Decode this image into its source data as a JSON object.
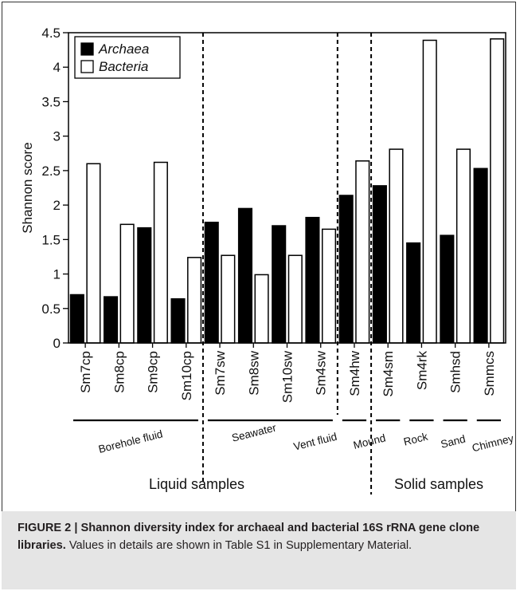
{
  "chart_data": {
    "type": "bar",
    "ylabel": "Shannon score",
    "ylim": [
      0,
      4.5
    ],
    "yticks": [
      "0",
      "0.5",
      "1",
      "1.5",
      "2",
      "2.5",
      "3",
      "3.5",
      "4",
      "4.5"
    ],
    "categories": [
      "Sm7cp",
      "Sm8cp",
      "Sm9cp",
      "Sm10cp",
      "Sm7sw",
      "Sm8sw",
      "Sm10sw",
      "Sm4sw",
      "Sm4hw",
      "Sm4sm",
      "Sm4rk",
      "Smhsd",
      "Smmcs"
    ],
    "series": [
      {
        "name": "Archaea",
        "color": "#000000",
        "values": [
          0.7,
          0.67,
          1.67,
          0.64,
          1.75,
          1.95,
          1.7,
          1.82,
          2.14,
          2.28,
          1.45,
          1.56,
          2.53
        ]
      },
      {
        "name": "Bacteria",
        "color": "#ffffff",
        "values": [
          2.6,
          1.72,
          2.62,
          1.24,
          1.27,
          0.99,
          1.27,
          1.65,
          2.64,
          2.81,
          4.39,
          2.81,
          4.41
        ]
      }
    ],
    "legend_position": "top-left",
    "separators_after_category": [
      4,
      8,
      9
    ],
    "groups": [
      {
        "label": "Borehole fluid",
        "from": 1,
        "to": 4
      },
      {
        "label": "Seawater",
        "from": 5,
        "to": 8
      },
      {
        "label": "Vent fluid",
        "from": 9,
        "to": 9
      },
      {
        "label": "Mound",
        "from": 10,
        "to": 10
      },
      {
        "label": "Rock",
        "from": 11,
        "to": 11
      },
      {
        "label": "Sand",
        "from": 12,
        "to": 12
      },
      {
        "label": "Chimney",
        "from": 13,
        "to": 13
      }
    ],
    "supergroups": [
      {
        "label": "Liquid samples",
        "from": 1,
        "to": 9
      },
      {
        "label": "Solid samples",
        "from": 10,
        "to": 13
      }
    ]
  },
  "caption": {
    "bold": "FIGURE 2 | Shannon diversity index for archaeal and bacterial 16S rRNA gene clone libraries.",
    "text": " Values in details are shown in Table S1 in Supplementary Material."
  }
}
